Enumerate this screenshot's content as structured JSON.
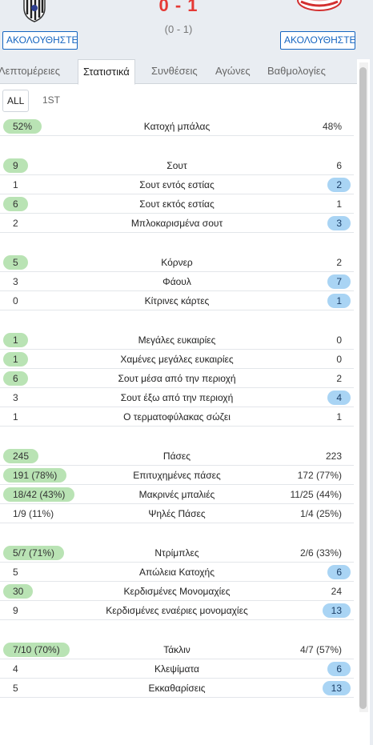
{
  "match": {
    "score": "0 - 1",
    "halftime": "(0 - 1)",
    "follow_home": "ΑΚΟΛΟΥΘΗΣΤΕ",
    "follow_away": "ΑΚΟΛΟΥΘΗΣΤΕ",
    "home_crest": "home-team-crest-icon",
    "away_crest": "away-team-crest-icon"
  },
  "tabs": [
    {
      "label": "Λεπτομέρειες"
    },
    {
      "label": "Στατιστικά",
      "active": true
    },
    {
      "label": "Συνθέσεις"
    },
    {
      "label": "Αγώνες"
    },
    {
      "label": "Βαθμολογίες"
    }
  ],
  "period_tabs": [
    {
      "label": "ALL",
      "active": true
    },
    {
      "label": "1ST"
    }
  ],
  "colors": {
    "score": "#e53935",
    "accent": "#1565c0",
    "home_highlight": "#b9e3b4",
    "away_highlight": "#a9d4f4"
  },
  "stats": [
    {
      "label": "Κατοχή μπάλας",
      "home": "52%",
      "away": "48%",
      "leader": "home"
    },
    {
      "label": "Σουτ",
      "home": "9",
      "away": "6",
      "leader": "home"
    },
    {
      "label": "Σουτ εντός εστίας",
      "home": "1",
      "away": "2",
      "leader": "away"
    },
    {
      "label": "Σουτ εκτός εστίας",
      "home": "6",
      "away": "1",
      "leader": "home"
    },
    {
      "label": "Μπλοκαρισμένα σουτ",
      "home": "2",
      "away": "3",
      "leader": "away"
    },
    {
      "label": "Κόρνερ",
      "home": "5",
      "away": "2",
      "leader": "home"
    },
    {
      "label": "Φάουλ",
      "home": "3",
      "away": "7",
      "leader": "away"
    },
    {
      "label": "Κίτρινες κάρτες",
      "home": "0",
      "away": "1",
      "leader": "away"
    },
    {
      "label": "Μεγάλες ευκαιρίες",
      "home": "1",
      "away": "0",
      "leader": "home"
    },
    {
      "label": "Χαμένες μεγάλες ευκαιρίες",
      "home": "1",
      "away": "0",
      "leader": "home"
    },
    {
      "label": "Σουτ μέσα από την περιοχή",
      "home": "6",
      "away": "2",
      "leader": "home"
    },
    {
      "label": "Σουτ έξω από την περιοχή",
      "home": "3",
      "away": "4",
      "leader": "away"
    },
    {
      "label": "Ο τερματοφύλακας σώζει",
      "home": "1",
      "away": "1",
      "leader": "none"
    },
    {
      "label": "Πάσες",
      "home": "245",
      "away": "223",
      "leader": "home"
    },
    {
      "label": "Επιτυχημένες πάσες",
      "home": "191 (78%)",
      "away": "172 (77%)",
      "leader": "home"
    },
    {
      "label": "Μακρινές μπαλιές",
      "home": "18/42 (43%)",
      "away": "11/25 (44%)",
      "leader": "home"
    },
    {
      "label": "Ψηλές Πάσες",
      "home": "1/9 (11%)",
      "away": "1/4 (25%)",
      "leader": "none"
    },
    {
      "label": "Ντρίμπλες",
      "home": "5/7 (71%)",
      "away": "2/6 (33%)",
      "leader": "home"
    },
    {
      "label": "Απώλεια Κατοχής",
      "home": "5",
      "away": "6",
      "leader": "away"
    },
    {
      "label": "Κερδισμένες Μονομαχίες",
      "home": "30",
      "away": "24",
      "leader": "home"
    },
    {
      "label": "Κερδισμένες εναέριες μονομαχίες",
      "home": "9",
      "away": "13",
      "leader": "away"
    },
    {
      "label": "Τάκλιν",
      "home": "7/10 (70%)",
      "away": "4/7 (57%)",
      "leader": "home"
    },
    {
      "label": "Κλεψίματα",
      "home": "4",
      "away": "6",
      "leader": "away"
    },
    {
      "label": "Εκκαθαρίσεις",
      "home": "5",
      "away": "13",
      "leader": "away"
    }
  ]
}
